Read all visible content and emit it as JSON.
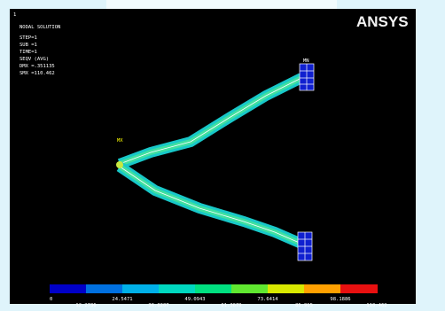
{
  "window": {
    "number": "1",
    "title": "NODAL SOLUTION",
    "info": [
      "STEP=1",
      "SUB =1",
      "TIME=1",
      "SEQV     (AVG)",
      "DMX =.351135",
      "SMX =110.462"
    ],
    "logo": "ANSYS",
    "node_label": "MN",
    "min_label": "MX"
  },
  "legend": {
    "top_labels": [
      "0",
      "24.5471",
      "49.0943",
      "73.6414",
      "98.1886"
    ],
    "bottom_labels": [
      "12.2736",
      "36.8207",
      "61.3679",
      "85.915",
      "110.462"
    ]
  }
}
